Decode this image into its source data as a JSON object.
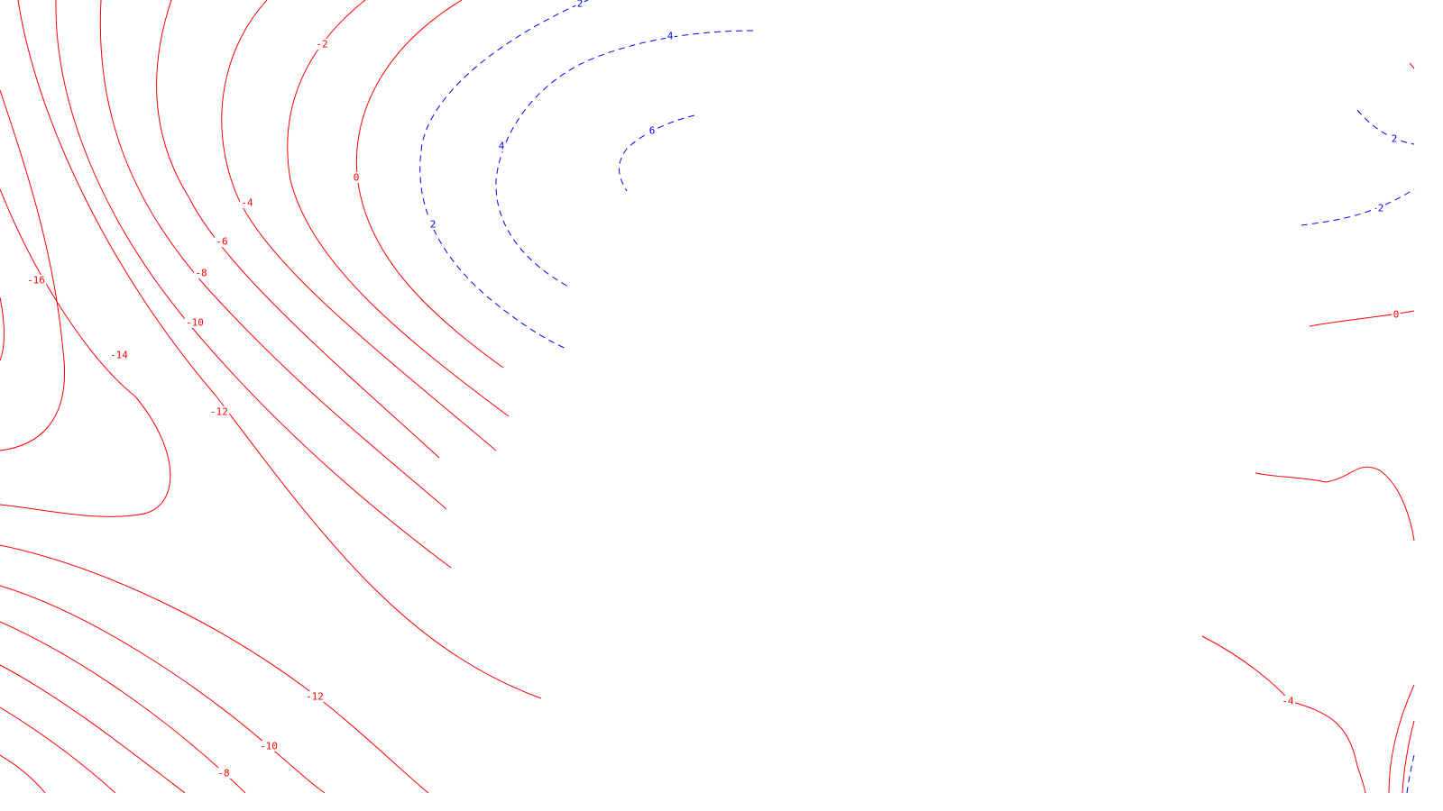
{
  "colors": {
    "negative": "#ff0000",
    "positive": "#0000ff",
    "background": "#ffffff"
  },
  "contour_labels": [
    {
      "id": "lbl-neg2-top",
      "text": "-2",
      "sign": "neg"
    },
    {
      "id": "lbl-0-left",
      "text": "0",
      "sign": "zero"
    },
    {
      "id": "lbl-neg4-top",
      "text": "-4",
      "sign": "neg"
    },
    {
      "id": "lbl-neg6-top",
      "text": "-6",
      "sign": "neg"
    },
    {
      "id": "lbl-neg8-top",
      "text": "-8",
      "sign": "neg"
    },
    {
      "id": "lbl-neg10-top",
      "text": "-10",
      "sign": "neg"
    },
    {
      "id": "lbl-neg12-mid",
      "text": "-12",
      "sign": "neg"
    },
    {
      "id": "lbl-neg14",
      "text": "-14",
      "sign": "neg"
    },
    {
      "id": "lbl-neg16",
      "text": "-16",
      "sign": "neg"
    },
    {
      "id": "lbl-neg12-bottom",
      "text": "-12",
      "sign": "neg"
    },
    {
      "id": "lbl-neg10-bottom",
      "text": "-10",
      "sign": "neg"
    },
    {
      "id": "lbl-neg8-bottom",
      "text": "-8",
      "sign": "neg"
    },
    {
      "id": "lbl-2-top",
      "text": "2",
      "sign": "pos"
    },
    {
      "id": "lbl-4-top",
      "text": "4",
      "sign": "pos"
    },
    {
      "id": "lbl-4-mid",
      "text": "4",
      "sign": "pos"
    },
    {
      "id": "lbl-6",
      "text": "6",
      "sign": "pos"
    },
    {
      "id": "lbl-2-left",
      "text": "2",
      "sign": "pos"
    },
    {
      "id": "lbl-2-right-upper",
      "text": "2",
      "sign": "pos"
    },
    {
      "id": "lbl-2-right-lower",
      "text": "2",
      "sign": "pos"
    },
    {
      "id": "lbl-0-right",
      "text": "0",
      "sign": "zero"
    },
    {
      "id": "lbl-neg4-bottom-right",
      "text": "-4",
      "sign": "neg"
    }
  ]
}
